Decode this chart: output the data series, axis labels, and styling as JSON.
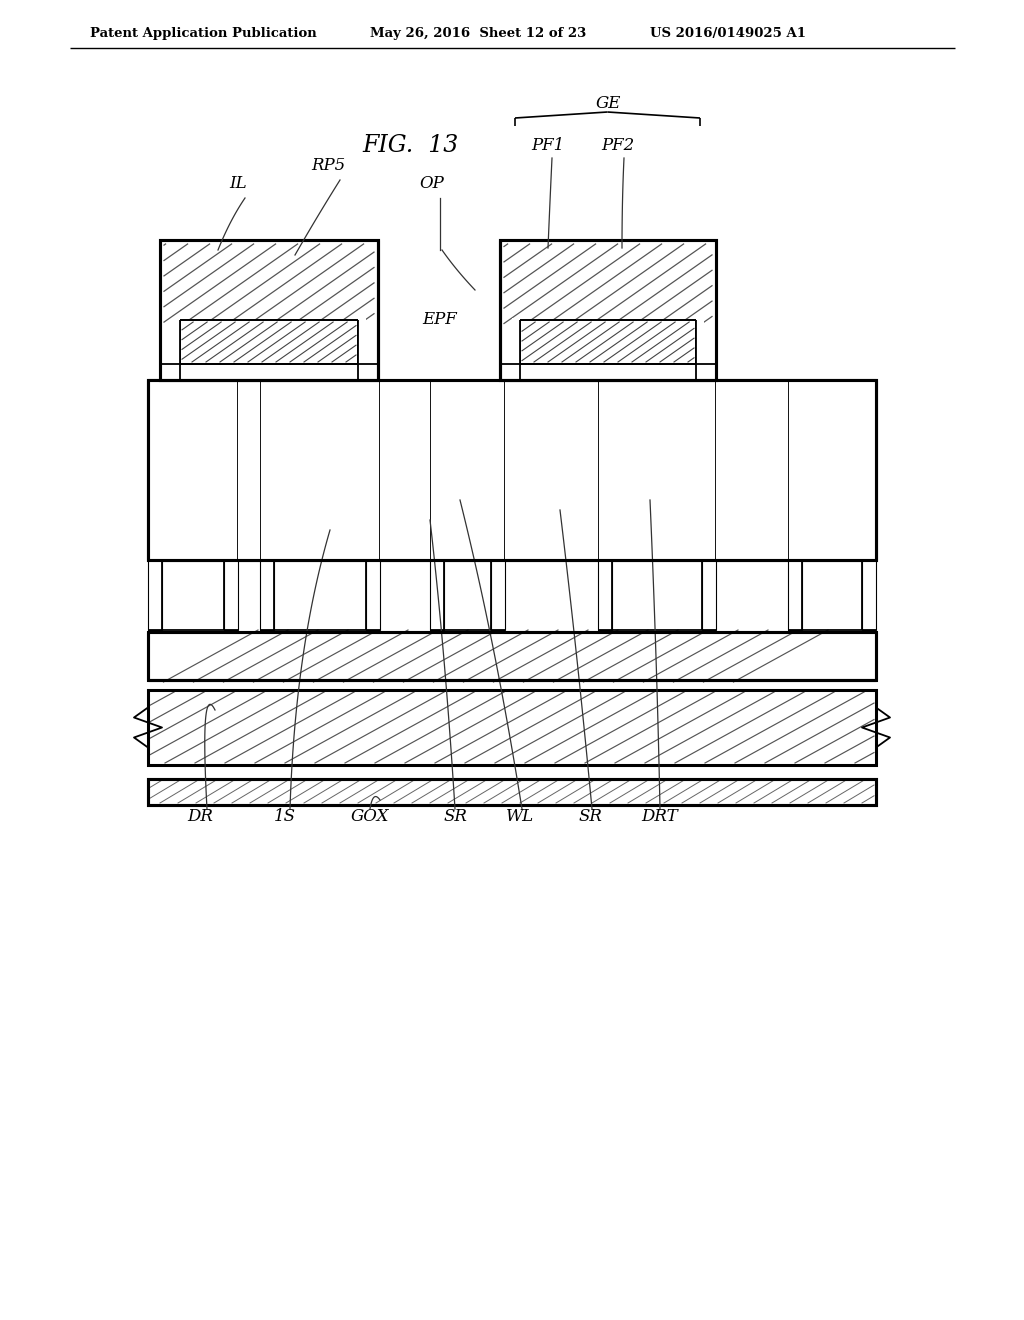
{
  "title": "FIG.  13",
  "header_left": "Patent Application Publication",
  "header_mid": "May 26, 2016  Sheet 12 of 23",
  "header_right": "US 2016/0149025 A1",
  "bg_color": "#ffffff",
  "line_color": "#000000"
}
